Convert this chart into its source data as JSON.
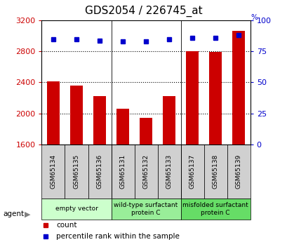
{
  "title": "GDS2054 / 226745_at",
  "samples": [
    "GSM65134",
    "GSM65135",
    "GSM65136",
    "GSM65131",
    "GSM65132",
    "GSM65133",
    "GSM65137",
    "GSM65138",
    "GSM65139"
  ],
  "counts": [
    2410,
    2360,
    2220,
    2055,
    1940,
    2220,
    2800,
    2790,
    3070
  ],
  "percentiles": [
    85,
    85,
    84,
    83,
    83,
    85,
    86,
    86,
    88
  ],
  "ylim_left": [
    1600,
    3200
  ],
  "ylim_right": [
    0,
    100
  ],
  "yticks_left": [
    1600,
    2000,
    2400,
    2800,
    3200
  ],
  "yticks_right": [
    0,
    25,
    50,
    75,
    100
  ],
  "groups": [
    {
      "label": "empty vector",
      "span": [
        0,
        3
      ],
      "color": "#ccffcc"
    },
    {
      "label": "wild-type surfactant\nprotein C",
      "span": [
        3,
        6
      ],
      "color": "#99ee99"
    },
    {
      "label": "misfolded surfactant\nprotein C",
      "span": [
        6,
        9
      ],
      "color": "#66dd66"
    }
  ],
  "bar_color": "#cc0000",
  "dot_color": "#0000cc",
  "bar_width": 0.55,
  "background_color": "#ffffff",
  "plot_bg": "#ffffff",
  "sample_box_color": "#d0d0d0",
  "tick_color_left": "#cc0000",
  "tick_color_right": "#0000cc",
  "title_fontsize": 11,
  "legend_count_color": "#cc0000",
  "legend_pct_color": "#0000cc",
  "gridline_ticks": [
    2000,
    2400,
    2800
  ],
  "group_sep": [
    2.5,
    5.5
  ]
}
